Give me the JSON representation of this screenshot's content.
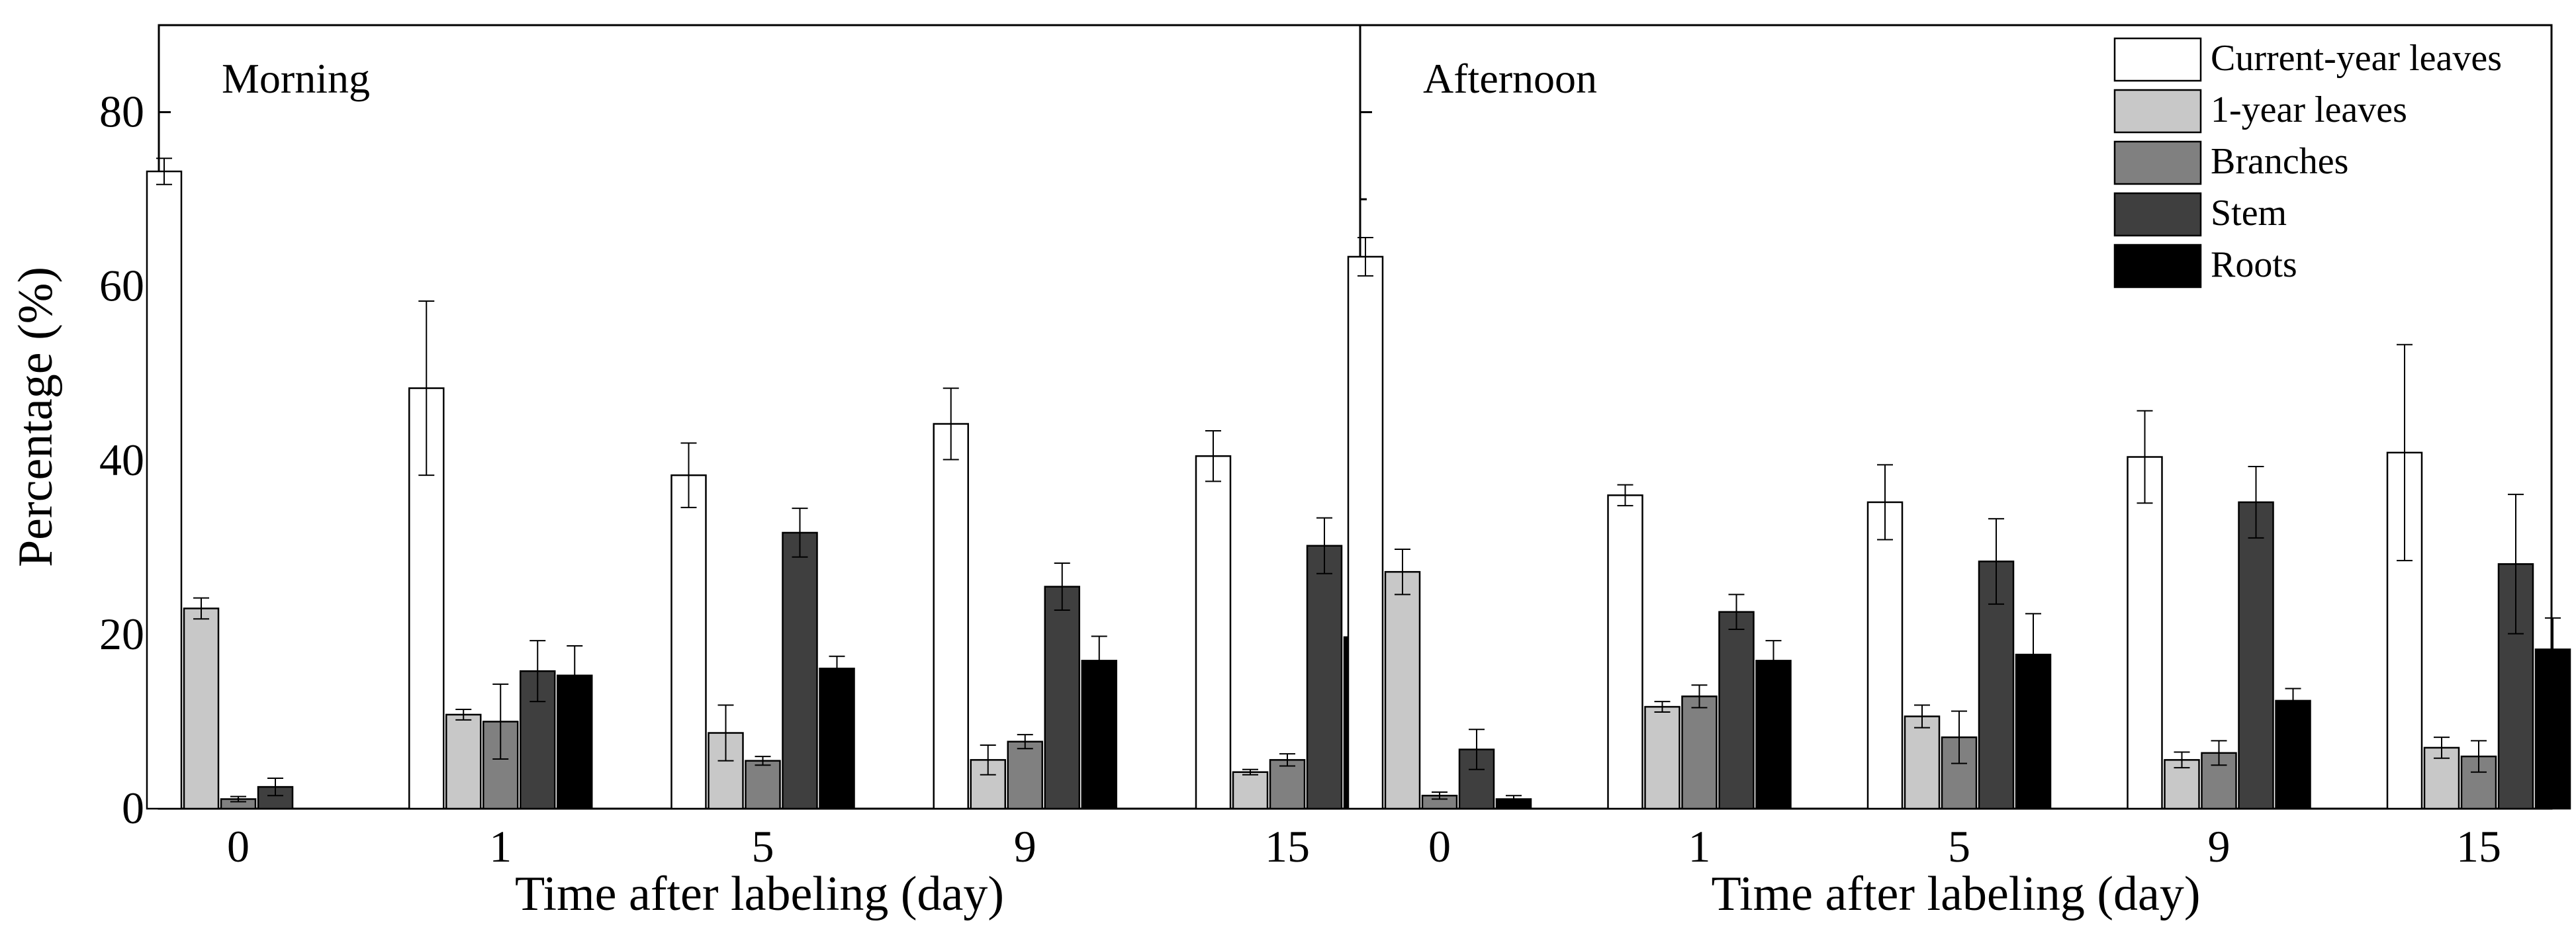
{
  "chart_data": {
    "type": "bar",
    "ylabel": "Percentage (%)",
    "ylim": [
      0,
      90
    ],
    "yticks": [
      0,
      20,
      40,
      60,
      80
    ],
    "legend_position": "top-right",
    "series_styles": [
      {
        "name": "Current-year leaves",
        "fill": "#ffffff"
      },
      {
        "name": "1-year leaves",
        "fill": "#c8c8c8"
      },
      {
        "name": "Branches",
        "fill": "#808080"
      },
      {
        "name": "Stem",
        "fill": "#3f3f3f"
      },
      {
        "name": "Roots",
        "fill": "#000000"
      }
    ],
    "panels": [
      {
        "title": "Morning",
        "xlabel": "Time after labeling (day)",
        "categories": [
          "0",
          "1",
          "5",
          "9",
          "15"
        ],
        "series": [
          {
            "name": "Current-year leaves",
            "values": [
              73.2,
              48.3,
              38.3,
              44.2,
              40.5
            ],
            "errors": [
              1.5,
              10,
              3.7,
              4.1,
              2.9
            ]
          },
          {
            "name": "1-year leaves",
            "values": [
              23.0,
              10.8,
              8.7,
              5.6,
              4.2
            ],
            "errors": [
              1.2,
              0.6,
              3.2,
              1.7,
              0.3
            ]
          },
          {
            "name": "Branches",
            "values": [
              1.1,
              10.0,
              5.5,
              7.7,
              5.6
            ],
            "errors": [
              0.3,
              4.3,
              0.5,
              0.8,
              0.7
            ]
          },
          {
            "name": "Stem",
            "values": [
              2.5,
              15.8,
              31.7,
              25.5,
              30.2
            ],
            "errors": [
              1.0,
              3.5,
              2.8,
              2.7,
              3.2
            ]
          },
          {
            "name": "Roots",
            "values": [
              0,
              15.3,
              16.1,
              17.0,
              19.7
            ],
            "errors": [
              0,
              3.4,
              1.4,
              2.8,
              1.0
            ]
          }
        ]
      },
      {
        "title": "Afternoon",
        "xlabel": "Time after labeling (day)",
        "categories": [
          "0",
          "1",
          "5",
          "9",
          "15"
        ],
        "series": [
          {
            "name": "Current-year leaves",
            "values": [
              63.4,
              36.0,
              35.2,
              40.4,
              40.9
            ],
            "errors": [
              2.2,
              1.2,
              4.3,
              5.3,
              12.4
            ]
          },
          {
            "name": "1-year leaves",
            "values": [
              27.2,
              11.7,
              10.6,
              5.6,
              7.0
            ],
            "errors": [
              2.6,
              0.6,
              1.3,
              0.9,
              1.2
            ]
          },
          {
            "name": "Branches",
            "values": [
              1.5,
              12.9,
              8.2,
              6.4,
              6.0
            ],
            "errors": [
              0.4,
              1.3,
              3.0,
              1.4,
              1.8
            ]
          },
          {
            "name": "Stem",
            "values": [
              6.8,
              22.6,
              28.4,
              35.2,
              28.1
            ],
            "errors": [
              2.3,
              2.0,
              4.9,
              4.1,
              8.0
            ]
          },
          {
            "name": "Roots",
            "values": [
              1.1,
              17.0,
              17.7,
              12.4,
              18.3
            ],
            "errors": [
              0.4,
              2.3,
              4.7,
              1.4,
              3.6
            ]
          }
        ]
      }
    ]
  }
}
